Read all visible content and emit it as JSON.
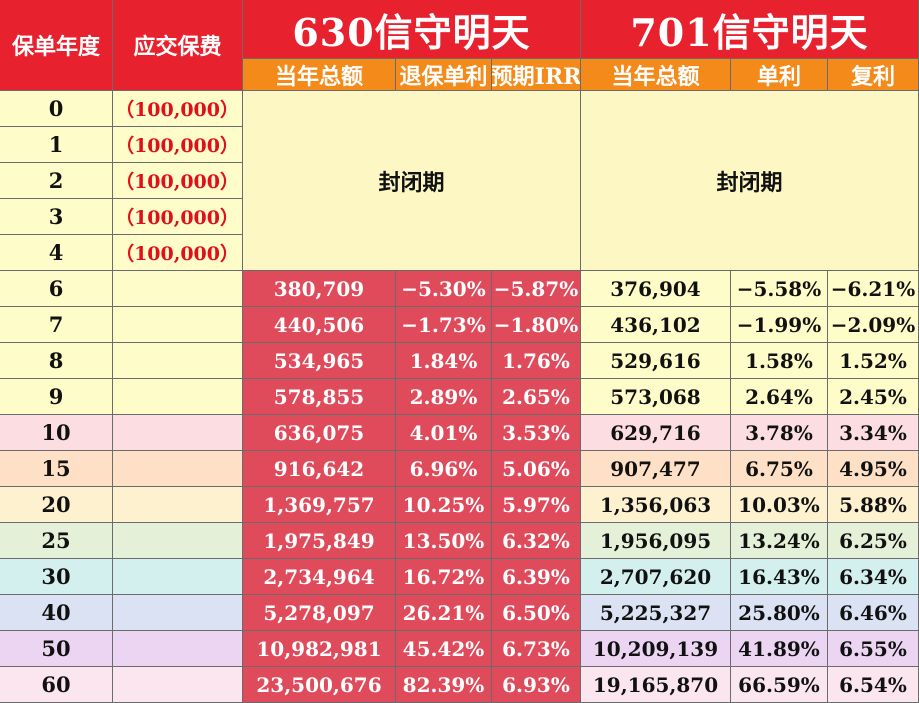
{
  "header": {
    "policy_year": "保单年度",
    "premium": "应交保费",
    "product_a": "630信守明天",
    "product_b": "701信守明天",
    "sub_a": [
      "当年总额",
      "退保单利",
      "预期IRR"
    ],
    "sub_b": [
      "当年总额",
      "单利",
      "复利"
    ]
  },
  "closed_label": "封闭期",
  "premium_rows": [
    {
      "year": "0",
      "premium": "（100,000）"
    },
    {
      "year": "1",
      "premium": "（100,000）"
    },
    {
      "year": "2",
      "premium": "（100,000）"
    },
    {
      "year": "3",
      "premium": "（100,000）"
    },
    {
      "year": "4",
      "premium": "（100,000）"
    }
  ],
  "value_rows": [
    {
      "year": "6",
      "a_total": "380,709",
      "a_simple": "−5.30%",
      "a_irr": "−5.87%",
      "b_total": "376,904",
      "b_simple": "−5.58%",
      "b_compound": "−6.21%"
    },
    {
      "year": "7",
      "a_total": "440,506",
      "a_simple": "−1.73%",
      "a_irr": "−1.80%",
      "b_total": "436,102",
      "b_simple": "−1.99%",
      "b_compound": "−2.09%"
    },
    {
      "year": "8",
      "a_total": "534,965",
      "a_simple": "1.84%",
      "a_irr": "1.76%",
      "b_total": "529,616",
      "b_simple": "1.58%",
      "b_compound": "1.52%"
    },
    {
      "year": "9",
      "a_total": "578,855",
      "a_simple": "2.89%",
      "a_irr": "2.65%",
      "b_total": "573,068",
      "b_simple": "2.64%",
      "b_compound": "2.45%"
    },
    {
      "year": "10",
      "a_total": "636,075",
      "a_simple": "4.01%",
      "a_irr": "3.53%",
      "b_total": "629,716",
      "b_simple": "3.78%",
      "b_compound": "3.34%"
    },
    {
      "year": "15",
      "a_total": "916,642",
      "a_simple": "6.96%",
      "a_irr": "5.06%",
      "b_total": "907,477",
      "b_simple": "6.75%",
      "b_compound": "4.95%"
    },
    {
      "year": "20",
      "a_total": "1,369,757",
      "a_simple": "10.25%",
      "a_irr": "5.97%",
      "b_total": "1,356,063",
      "b_simple": "10.03%",
      "b_compound": "5.88%"
    },
    {
      "year": "25",
      "a_total": "1,975,849",
      "a_simple": "13.50%",
      "a_irr": "6.32%",
      "b_total": "1,956,095",
      "b_simple": "13.24%",
      "b_compound": "6.25%"
    },
    {
      "year": "30",
      "a_total": "2,734,964",
      "a_simple": "16.72%",
      "a_irr": "6.39%",
      "b_total": "2,707,620",
      "b_simple": "16.43%",
      "b_compound": "6.34%"
    },
    {
      "year": "40",
      "a_total": "5,278,097",
      "a_simple": "26.21%",
      "a_irr": "6.50%",
      "b_total": "5,225,327",
      "b_simple": "25.80%",
      "b_compound": "6.46%"
    },
    {
      "year": "50",
      "a_total": "10,982,981",
      "a_simple": "45.42%",
      "a_irr": "6.73%",
      "b_total": "10,209,139",
      "b_simple": "41.89%",
      "b_compound": "6.55%"
    },
    {
      "year": "60",
      "a_total": "23,500,676",
      "a_simple": "82.39%",
      "a_irr": "6.93%",
      "b_total": "19,165,870",
      "b_simple": "66.59%",
      "b_compound": "6.54%"
    }
  ],
  "colors": {
    "header_red": "#e8212f",
    "header_orange": "#f48a1a",
    "product_a_fill": "#e04b5b",
    "premium_red": "#e0101a",
    "row_band_fills": [
      "#fefcc8",
      "#fefcc8",
      "#fefcc8",
      "#fefcc8",
      "#fbdde2",
      "#fde0c6",
      "#fdf1cf",
      "#e4f1d8",
      "#d4f0ee",
      "#dbe2f3",
      "#ecd4f3",
      "#fbe6ef"
    ]
  }
}
